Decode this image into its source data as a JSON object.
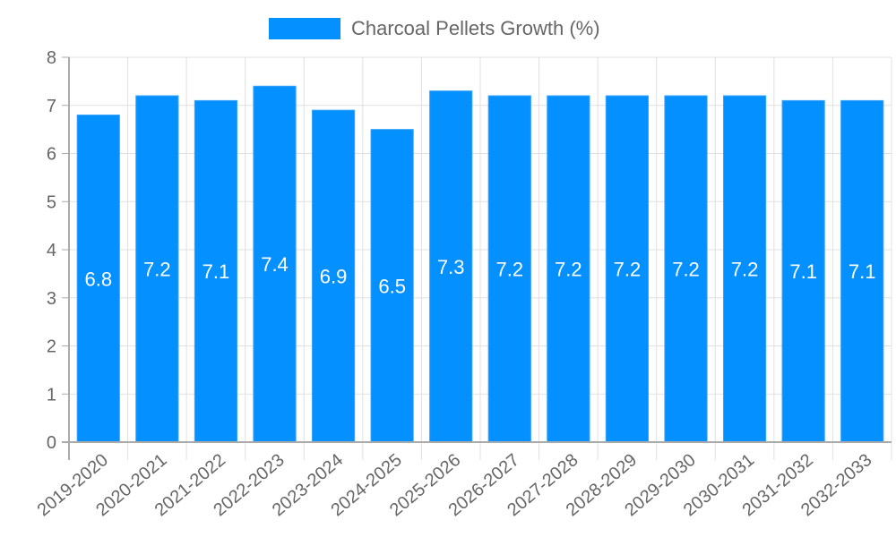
{
  "chart_data": {
    "type": "bar",
    "title": "",
    "xlabel": "",
    "ylabel": "",
    "ylim": [
      0,
      8
    ],
    "yticks": [
      0,
      1,
      2,
      3,
      4,
      5,
      6,
      7,
      8
    ],
    "grid": true,
    "legend_position": "top",
    "categories": [
      "2019-2020",
      "2020-2021",
      "2021-2022",
      "2022-2023",
      "2023-2024",
      "2024-2025",
      "2025-2026",
      "2026-2027",
      "2027-2028",
      "2028-2029",
      "2029-2030",
      "2030-2031",
      "2031-2032",
      "2032-2033"
    ],
    "series": [
      {
        "name": "Charcoal Pellets Growth (%)",
        "color": "#0590ff",
        "values": [
          6.8,
          7.2,
          7.1,
          7.4,
          6.9,
          6.5,
          7.3,
          7.2,
          7.2,
          7.2,
          7.2,
          7.2,
          7.1,
          7.1
        ],
        "data_labels": [
          "6.8",
          "7.2",
          "7.1",
          "7.4",
          "6.9",
          "6.5",
          "7.3",
          "7.2",
          "7.2",
          "7.2",
          "7.2",
          "7.2",
          "7.1",
          "7.1"
        ]
      }
    ]
  },
  "legend": {
    "label": "Charcoal Pellets Growth (%)",
    "color": "#0590ff"
  }
}
